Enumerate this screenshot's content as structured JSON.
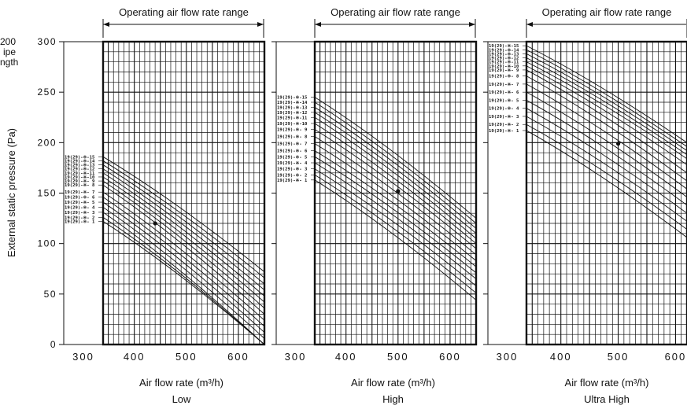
{
  "side_note": [
    "200",
    "ipe",
    "ngth"
  ],
  "ylabel": "External static pressure (Pa)",
  "chart_data": [
    {
      "type": "line",
      "range_label": "Operating air flow rate range",
      "xlabel": "Air flow rate (m³/h)",
      "mode_label": "Low",
      "xlim": [
        300,
        650
      ],
      "ylim": [
        0,
        300
      ],
      "operating_range": [
        340,
        650
      ],
      "x_ticks": [
        "300",
        "400",
        "500",
        "600"
      ],
      "y_ticks": [
        "0",
        "50",
        "100",
        "150",
        "200",
        "250",
        "300"
      ],
      "series_labels": [
        "19(29)-※-15",
        "19(29)-※-14",
        "19(29)-※-13",
        "19(29)-※-12",
        "19(29)-※-11",
        "19(29)-※-10",
        "19(29)-※- 9",
        "19(29)-※- 8",
        "19(29)-※- 7",
        "19(29)-※- 6",
        "19(29)-※- 5",
        "19(29)-※- 4",
        "19(29)-※- 3",
        "19(29)-※- 2",
        "19(29)-※- 1"
      ],
      "curve_start_x": 340,
      "curve_start_y": [
        186,
        182,
        178,
        174,
        170,
        166,
        162,
        158,
        151,
        146,
        141,
        136,
        131,
        126,
        122
      ],
      "curve_end_y": [
        72,
        66,
        60,
        54,
        48,
        42,
        36,
        30,
        24,
        18,
        12,
        6,
        0,
        0,
        0
      ],
      "marker": {
        "x": 440,
        "y": 120
      }
    },
    {
      "type": "line",
      "range_label": "Operating air flow rate range",
      "xlabel": "Air flow rate (m³/h)",
      "mode_label": "High",
      "xlim": [
        300,
        650
      ],
      "ylim": [
        0,
        300
      ],
      "operating_range": [
        340,
        650
      ],
      "x_ticks": [
        "300",
        "400",
        "500",
        "600"
      ],
      "y_ticks": [
        "0",
        "50",
        "100",
        "150",
        "200",
        "250",
        "300"
      ],
      "series_labels": [
        "19(29)-※-15",
        "19(29)-※-14",
        "19(29)-※-13",
        "19(29)-※-12",
        "19(29)-※-11",
        "19(29)-※-10",
        "19(29)-※- 9",
        "19(29)-※- 8",
        "19(29)-※- 7",
        "19(29)-※- 6",
        "19(29)-※- 5",
        "19(29)-※- 4",
        "19(29)-※- 3",
        "19(29)-※- 2",
        "19(29)-※- 1"
      ],
      "curve_start_x": 340,
      "curve_start_y": [
        245,
        240,
        235,
        230,
        225,
        219,
        213,
        206,
        199,
        192,
        186,
        180,
        174,
        168,
        163
      ],
      "curve_end_y": [
        125,
        120,
        115,
        110,
        105,
        100,
        95,
        89,
        83,
        77,
        71,
        65,
        58,
        51,
        44
      ],
      "marker": {
        "x": 500,
        "y": 152
      }
    },
    {
      "type": "line",
      "range_label": "Operating air flow rate range",
      "xlabel": "Air flow rate (m³/h)",
      "mode_label": "Ultra High",
      "xlim": [
        300,
        620
      ],
      "ylim": [
        0,
        300
      ],
      "operating_range": [
        340,
        620
      ],
      "x_ticks": [
        "300",
        "400",
        "500",
        "600"
      ],
      "y_ticks": [
        "0",
        "50",
        "100",
        "150",
        "200",
        "250",
        "300"
      ],
      "series_labels": [
        "19(29)-※-15",
        "19(29)-※-14",
        "19(29)-※-13",
        "19(29)-※-12",
        "19(29)-※-11",
        "19(29)-※-10",
        "19(29)-※- 9",
        "19(29)-※- 8",
        "19(29)-※- 7",
        "19(29)-※- 6",
        "19(29)-※- 5",
        "19(29)-※- 4",
        "19(29)-※- 3",
        "19(29)-※- 2",
        "19(29)-※- 1"
      ],
      "curve_start_x": 340,
      "curve_start_y": [
        296,
        292,
        288,
        284,
        280,
        276,
        272,
        266,
        258,
        250,
        242,
        234,
        226,
        218,
        212
      ],
      "curve_end_y": [
        200,
        196,
        192,
        188,
        184,
        178,
        170,
        162,
        154,
        146,
        138,
        130,
        122,
        114,
        106
      ],
      "marker": {
        "x": 500,
        "y": 199
      }
    }
  ]
}
